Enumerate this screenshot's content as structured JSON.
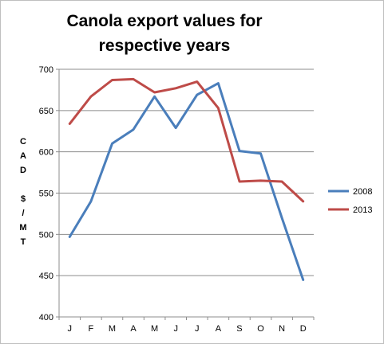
{
  "chart_data": {
    "type": "line",
    "title": "Canola export values for respective years",
    "ylabel": "CAD $/MT",
    "xlabel": "",
    "categories": [
      "J",
      "F",
      "M",
      "A",
      "M",
      "J",
      "J",
      "A",
      "S",
      "O",
      "N",
      "D"
    ],
    "ylim": [
      400,
      700
    ],
    "yticks": [
      400,
      450,
      500,
      550,
      600,
      650,
      700
    ],
    "grid": true,
    "legend": "right",
    "series": [
      {
        "name": "2008",
        "color": "#4a7ebb",
        "values": [
          497,
          540,
          610,
          627,
          667,
          629,
          669,
          683,
          601,
          598,
          520,
          445
        ]
      },
      {
        "name": "2013",
        "color": "#be4b48",
        "values": [
          634,
          667,
          687,
          688,
          672,
          677,
          685,
          653,
          564,
          565,
          564,
          540
        ]
      }
    ]
  }
}
